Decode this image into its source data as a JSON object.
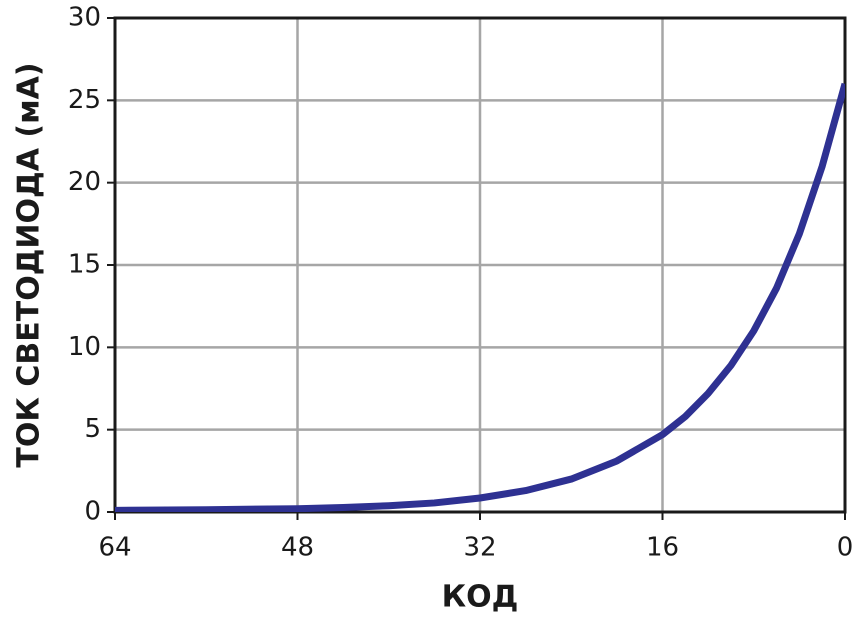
{
  "chart_data": {
    "type": "line",
    "xlabel": "КОД",
    "ylabel": "ТОК СВЕТОДИОДА (мА)",
    "x": [
      0,
      2,
      4,
      6,
      8,
      10,
      12,
      14,
      16,
      20,
      24,
      28,
      32,
      36,
      40,
      44,
      48,
      56,
      64
    ],
    "series": [
      {
        "color": "#2e3192",
        "values": [
          26.0,
          21.0,
          16.9,
          13.6,
          11.0,
          8.9,
          7.2,
          5.8,
          4.7,
          3.1,
          2.0,
          1.3,
          0.85,
          0.55,
          0.38,
          0.27,
          0.2,
          0.14,
          0.1
        ]
      }
    ],
    "xlim": [
      64,
      0
    ],
    "xticks": [
      64,
      48,
      32,
      16,
      0
    ],
    "ylim": [
      0,
      30
    ],
    "yticks": [
      0,
      5,
      10,
      15,
      20,
      25,
      30
    ],
    "grid": true
  }
}
